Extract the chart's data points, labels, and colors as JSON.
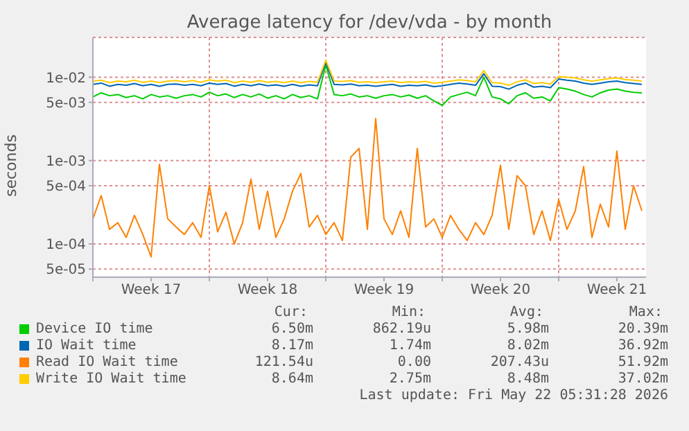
{
  "chart_data": {
    "type": "line",
    "title": "Average latency for /dev/vda - by month",
    "ylabel": "seconds",
    "x": [
      "2026-04-20T00:00",
      "2026-04-20T12:00",
      "2026-04-21T00:00",
      "2026-04-21T12:00",
      "2026-04-22T00:00",
      "2026-04-22T12:00",
      "2026-04-23T00:00",
      "2026-04-23T12:00",
      "2026-04-24T00:00",
      "2026-04-24T12:00",
      "2026-04-25T00:00",
      "2026-04-25T12:00",
      "2026-04-26T00:00",
      "2026-04-26T12:00",
      "2026-04-27T00:00",
      "2026-04-27T12:00",
      "2026-04-28T00:00",
      "2026-04-28T12:00",
      "2026-04-29T00:00",
      "2026-04-29T12:00",
      "2026-04-30T00:00",
      "2026-04-30T12:00",
      "2026-05-01T00:00",
      "2026-05-01T12:00",
      "2026-05-02T00:00",
      "2026-05-02T12:00",
      "2026-05-03T00:00",
      "2026-05-03T12:00",
      "2026-05-04T00:00",
      "2026-05-04T12:00",
      "2026-05-05T00:00",
      "2026-05-05T12:00",
      "2026-05-06T00:00",
      "2026-05-06T12:00",
      "2026-05-07T00:00",
      "2026-05-07T12:00",
      "2026-05-08T00:00",
      "2026-05-08T12:00",
      "2026-05-09T00:00",
      "2026-05-09T12:00",
      "2026-05-10T00:00",
      "2026-05-10T12:00",
      "2026-05-11T00:00",
      "2026-05-11T12:00",
      "2026-05-12T00:00",
      "2026-05-12T12:00",
      "2026-05-13T00:00",
      "2026-05-13T12:00",
      "2026-05-14T00:00",
      "2026-05-14T12:00",
      "2026-05-15T00:00",
      "2026-05-15T12:00",
      "2026-05-16T00:00",
      "2026-05-16T12:00",
      "2026-05-17T00:00",
      "2026-05-17T12:00",
      "2026-05-18T00:00",
      "2026-05-18T12:00",
      "2026-05-19T00:00",
      "2026-05-19T12:00",
      "2026-05-20T00:00",
      "2026-05-20T12:00",
      "2026-05-21T00:00",
      "2026-05-21T12:00",
      "2026-05-22T00:00",
      "2026-05-22T12:00",
      "2026-05-23T00:00"
    ],
    "series": [
      {
        "name": "Device IO time",
        "color": "#00cc00",
        "values": [
          0.0058,
          0.0065,
          0.006,
          0.0062,
          0.0057,
          0.006,
          0.0055,
          0.0062,
          0.0058,
          0.006,
          0.0056,
          0.006,
          0.0062,
          0.0058,
          0.0066,
          0.006,
          0.0063,
          0.0057,
          0.0062,
          0.0058,
          0.0063,
          0.0056,
          0.006,
          0.0055,
          0.0062,
          0.0057,
          0.006,
          0.0055,
          0.014,
          0.0062,
          0.006,
          0.0063,
          0.0058,
          0.006,
          0.0056,
          0.006,
          0.0062,
          0.0058,
          0.0061,
          0.0056,
          0.006,
          0.0052,
          0.0046,
          0.0058,
          0.0062,
          0.0066,
          0.006,
          0.01,
          0.0058,
          0.0055,
          0.0048,
          0.006,
          0.0065,
          0.0056,
          0.0058,
          0.0052,
          0.0075,
          0.0072,
          0.0068,
          0.0062,
          0.0058,
          0.0065,
          0.007,
          0.0072,
          0.0068,
          0.0066,
          0.0065
        ]
      },
      {
        "name": "IO Wait time",
        "color": "#0066b3",
        "values": [
          0.0082,
          0.0085,
          0.0078,
          0.0082,
          0.008,
          0.0084,
          0.0079,
          0.0082,
          0.0078,
          0.0082,
          0.0083,
          0.008,
          0.0082,
          0.0079,
          0.0085,
          0.0082,
          0.0084,
          0.0078,
          0.0082,
          0.0079,
          0.0083,
          0.0079,
          0.0081,
          0.0078,
          0.0082,
          0.0078,
          0.0081,
          0.0079,
          0.015,
          0.0082,
          0.0081,
          0.0083,
          0.0079,
          0.008,
          0.0078,
          0.008,
          0.0082,
          0.0078,
          0.008,
          0.0079,
          0.0081,
          0.0077,
          0.0079,
          0.0082,
          0.0085,
          0.0083,
          0.008,
          0.011,
          0.0078,
          0.0077,
          0.0072,
          0.008,
          0.0085,
          0.0076,
          0.0078,
          0.0075,
          0.0095,
          0.0092,
          0.009,
          0.0085,
          0.0082,
          0.0085,
          0.0088,
          0.009,
          0.0086,
          0.0084,
          0.0082
        ]
      },
      {
        "name": "Read IO Wait time",
        "color": "#ff8000",
        "values": [
          0.0002,
          0.00038,
          0.00015,
          0.00018,
          0.00012,
          0.00022,
          0.00013,
          7e-05,
          0.0009,
          0.0002,
          0.00016,
          0.00013,
          0.00018,
          0.00012,
          0.0005,
          0.00014,
          0.00024,
          0.0001,
          0.00018,
          0.0006,
          0.00015,
          0.00043,
          0.00012,
          0.0002,
          0.00043,
          0.0007,
          0.00016,
          0.00022,
          0.00013,
          0.00018,
          0.00011,
          0.0011,
          0.0014,
          0.00015,
          0.0032,
          0.0002,
          0.00013,
          0.00025,
          0.00012,
          0.0014,
          0.00016,
          0.0002,
          0.00012,
          0.00022,
          0.00015,
          0.00011,
          0.00018,
          0.00013,
          0.00022,
          0.00088,
          0.00015,
          0.00066,
          0.0005,
          0.00013,
          0.00025,
          0.00011,
          0.00034,
          0.00015,
          0.00025,
          0.00085,
          0.00012,
          0.0003,
          0.00016,
          0.0013,
          0.00015,
          0.0005,
          0.00025
        ]
      },
      {
        "name": "Write IO Wait time",
        "color": "#ffcc00",
        "values": [
          0.009,
          0.0092,
          0.0086,
          0.009,
          0.0088,
          0.0092,
          0.0087,
          0.009,
          0.0086,
          0.009,
          0.0091,
          0.0088,
          0.0091,
          0.0087,
          0.0093,
          0.009,
          0.0092,
          0.0086,
          0.009,
          0.0087,
          0.0091,
          0.0087,
          0.0089,
          0.0086,
          0.009,
          0.0086,
          0.0089,
          0.0087,
          0.016,
          0.009,
          0.0089,
          0.0091,
          0.0087,
          0.0088,
          0.0086,
          0.0088,
          0.009,
          0.0086,
          0.0088,
          0.0087,
          0.0089,
          0.0085,
          0.0087,
          0.009,
          0.0093,
          0.0091,
          0.0088,
          0.012,
          0.0086,
          0.0085,
          0.008,
          0.0088,
          0.0093,
          0.0084,
          0.0086,
          0.0083,
          0.0102,
          0.01,
          0.0098,
          0.0093,
          0.009,
          0.0093,
          0.0096,
          0.0098,
          0.0094,
          0.0092,
          0.009
        ]
      }
    ],
    "log": "y",
    "ylim": [
      4e-05,
      0.03
    ],
    "yticks": [
      {
        "value": 5e-05,
        "label": "5e-05"
      },
      {
        "value": 0.0001,
        "label": "1e-04"
      },
      {
        "value": 0.0005,
        "label": "5e-04"
      },
      {
        "value": 0.001,
        "label": "1e-03"
      },
      {
        "value": 0.005,
        "label": "5e-03"
      },
      {
        "value": 0.01,
        "label": "1e-02"
      }
    ],
    "xlim": [
      "2026-04-20T00:00",
      "2026-05-23T06:00"
    ],
    "xticks": [
      {
        "value": "2026-04-20T00:00",
        "label": null
      },
      {
        "value": "2026-04-23T12:00",
        "label": "Week 17"
      },
      {
        "value": "2026-04-27T00:00",
        "label": null
      },
      {
        "value": "2026-04-30T12:00",
        "label": "Week 18"
      },
      {
        "value": "2026-05-04T00:00",
        "label": null
      },
      {
        "value": "2026-05-07T12:00",
        "label": "Week 19"
      },
      {
        "value": "2026-05-11T00:00",
        "label": null
      },
      {
        "value": "2026-05-14T12:00",
        "label": "Week 20"
      },
      {
        "value": "2026-05-18T00:00",
        "label": null
      },
      {
        "value": "2026-05-21T12:00",
        "label": "Week 21"
      }
    ],
    "grid": true,
    "legend": "bottom",
    "marker": "none",
    "line_style": "solid",
    "annotations": [
      "Cur:",
      "Min:",
      "Avg:",
      "Max:",
      "6.50m",
      "862.19u",
      "5.98m",
      "20.39m",
      "8.17m",
      "1.74m",
      "8.02m",
      "36.92m",
      "121.54u",
      "0.00",
      "207.43u",
      "51.92m",
      "8.64m",
      "2.75m",
      "8.48m",
      "37.02m",
      "Last update: Fri May 22 05:31:28 2026"
    ]
  }
}
